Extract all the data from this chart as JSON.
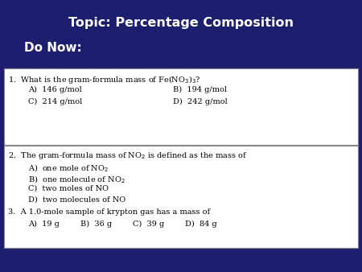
{
  "bg_color": "#1e1e6e",
  "title": "Topic: Percentage Composition",
  "subtitle": "Do Now:",
  "title_color": "#ffffff",
  "subtitle_color": "#ffffff",
  "box_bg": "#ffffff",
  "box_border": "#888888",
  "text_color": "#000000",
  "q1_label": "1.  What is the gram-formula mass of Fe(NO",
  "q1_label2": ")₃?",
  "q1_sub1": "3",
  "q1_a": "A)  146 g/mol",
  "q1_b": "B)  194 g/mol",
  "q1_c": "C)  214 g/mol",
  "q1_d": "D)  242 g/mol",
  "q2": "2.  The gram-formula mass of NO₂ is defined as the mass of",
  "q2_a": "A)  one mole of NO₂",
  "q2_b": "B)  one molecule of NO₂",
  "q2_c": "C)  two moles of NO",
  "q2_d": "D)  two molecules of NO",
  "q3": "3.  A 1.0-mole sample of krypton gas has a mass of",
  "q3_a": "A)  19 g",
  "q3_b": "B)  36 g",
  "q3_c": "C)  39 g",
  "q3_d": "D)  84 g",
  "title_fontsize": 11.5,
  "subtitle_fontsize": 11,
  "q_fontsize": 7.0
}
